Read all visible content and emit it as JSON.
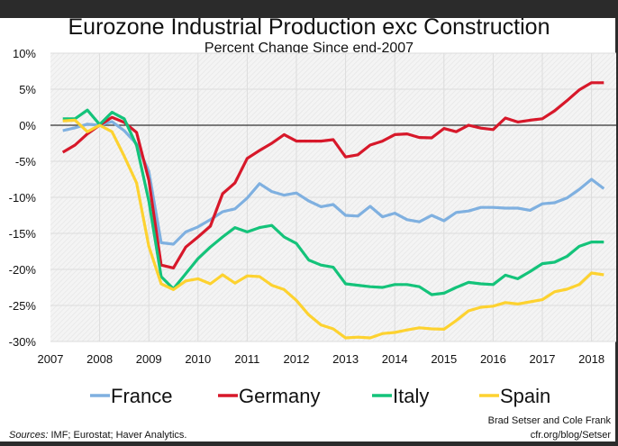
{
  "chart_data": {
    "type": "line",
    "title": "Eurozone Industrial Production exc Construction",
    "subtitle": "Percent Change Since end-2007",
    "xlabel": "",
    "ylabel": "",
    "xlim": [
      2007,
      2018.4
    ],
    "ylim": [
      -30,
      10
    ],
    "x_ticks": [
      "2007",
      "2008",
      "2009",
      "2010",
      "2011",
      "2012",
      "2013",
      "2014",
      "2015",
      "2016",
      "2017",
      "2018"
    ],
    "y_ticks": [
      "10%",
      "5%",
      "0%",
      "-5%",
      "-10%",
      "-15%",
      "-20%",
      "-25%",
      "-30%"
    ],
    "grid": true,
    "legend_position": "bottom",
    "x_start": 2007.25,
    "x_step": 0.25,
    "series": [
      {
        "name": "France",
        "color": "#7fb0e0",
        "values": [
          -0.75,
          -0.35,
          0.15,
          0,
          0.5,
          -0.75,
          -2.6,
          -6.4,
          -16.3,
          -16.5,
          -14.8,
          -14.1,
          -13.1,
          -12,
          -11.6,
          -10.1,
          -8.1,
          -9.2,
          -9.7,
          -9.4,
          -10.5,
          -11.3,
          -11,
          -12.5,
          -12.6,
          -11.25,
          -12.7,
          -12.2,
          -13.1,
          -13.4,
          -12.5,
          -13.25,
          -12.1,
          -11.9,
          -11.4,
          -11.4,
          -11.5,
          -11.5,
          -11.8,
          -10.9,
          -10.75,
          -10.1,
          -8.9,
          -7.5,
          -8.8
        ]
      },
      {
        "name": "Germany",
        "color": "#d7182a",
        "values": [
          -3.75,
          -2.75,
          -1.2,
          0,
          1.1,
          0.4,
          -1,
          -7.6,
          -19.4,
          -19.8,
          -16.9,
          -15.5,
          -14,
          -9.5,
          -8,
          -4.6,
          -3.5,
          -2.5,
          -1.3,
          -2.2,
          -2.2,
          -2.2,
          -2,
          -4.4,
          -4.1,
          -2.75,
          -2.2,
          -1.3,
          -1.2,
          -1.7,
          -1.75,
          -0.45,
          -0.9,
          0,
          -0.4,
          -0.6,
          1.0,
          0.45,
          0.7,
          0.9,
          2.0,
          3.4,
          4.9,
          5.9,
          5.9
        ]
      },
      {
        "name": "Italy",
        "color": "#14c37a",
        "values": [
          0.9,
          0.9,
          2.1,
          0.1,
          1.8,
          0.9,
          -2.8,
          -10.5,
          -21,
          -22.7,
          -20.6,
          -18.5,
          -16.9,
          -15.5,
          -14.2,
          -14.8,
          -14.2,
          -13.9,
          -15.5,
          -16.4,
          -18.7,
          -19.4,
          -19.7,
          -22,
          -22.2,
          -22.4,
          -22.5,
          -22.1,
          -22.1,
          -22.4,
          -23.5,
          -23.3,
          -22.5,
          -21.8,
          -22,
          -22.1,
          -20.8,
          -21.3,
          -20.3,
          -19.2,
          -19,
          -18.2,
          -16.8,
          -16.2,
          -16.2
        ]
      },
      {
        "name": "Spain",
        "color": "#fdd230",
        "values": [
          0.6,
          0.7,
          -0.9,
          0,
          -0.9,
          -4.3,
          -8,
          -16.8,
          -22,
          -22.8,
          -21.6,
          -21.3,
          -22,
          -20.75,
          -21.9,
          -20.9,
          -21,
          -22.2,
          -22.8,
          -24.3,
          -26.3,
          -27.7,
          -28.25,
          -29.5,
          -29.4,
          -29.5,
          -28.9,
          -28.75,
          -28.4,
          -28.1,
          -28.25,
          -28.3,
          -27.1,
          -25.75,
          -25.25,
          -25.1,
          -24.6,
          -24.8,
          -24.5,
          -24.2,
          -23.1,
          -22.75,
          -22.1,
          -20.5,
          -20.75
        ]
      }
    ]
  },
  "footer": {
    "sources_label": "Sources:",
    "sources_text": " IMF; Eurostat; Haver Analytics.",
    "credit": "Brad Setser and Cole Frank",
    "url": "cfr.org/blog/Setser"
  }
}
